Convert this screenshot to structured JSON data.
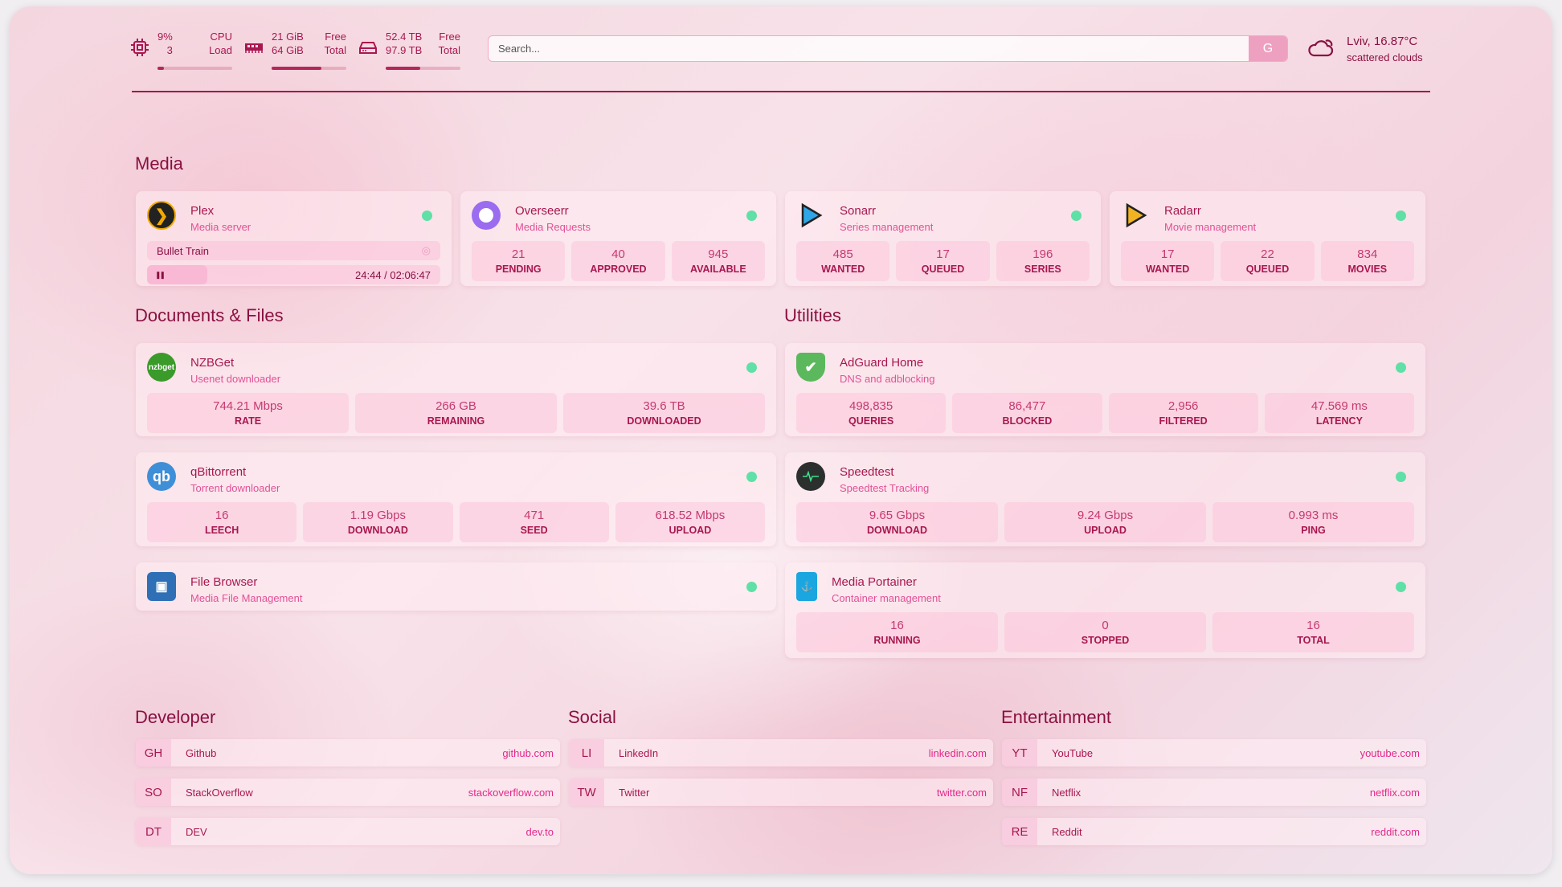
{
  "top": {
    "cpu": {
      "icon": "cpu-icon",
      "v1": "9%",
      "v2": "3",
      "l1": "CPU",
      "l2": "Load",
      "fill": 9
    },
    "mem": {
      "icon": "memory-icon",
      "v1": "21 GiB",
      "v2": "64 GiB",
      "l1": "Free",
      "l2": "Total",
      "fill": 67
    },
    "disk": {
      "icon": "disk-icon",
      "v1": "52.4 TB",
      "v2": "97.9 TB",
      "l1": "Free",
      "l2": "Total",
      "fill": 46
    },
    "search": {
      "placeholder": "Search...",
      "button": "G"
    },
    "weather": {
      "icon": "cloud-sun-icon",
      "title": "Lviv, 16.87°C",
      "desc": "scattered clouds"
    }
  },
  "colors": {
    "accent": "#a8174f",
    "status_ok": "#5fe0a6"
  },
  "media": {
    "heading": "Media",
    "cards": [
      {
        "id": "plex",
        "title": "Plex",
        "subtitle": "Media server",
        "icon_color": "#222",
        "player": {
          "title": "Bullet Train",
          "time": "24:44 / 02:06:47",
          "state": "paused"
        }
      },
      {
        "id": "overseerr",
        "title": "Overseerr",
        "subtitle": "Media Requests",
        "icon_color": "#9b6cf0",
        "stats": [
          {
            "v": "21",
            "l": "PENDING"
          },
          {
            "v": "40",
            "l": "APPROVED"
          },
          {
            "v": "945",
            "l": "AVAILABLE"
          }
        ]
      },
      {
        "id": "sonarr",
        "title": "Sonarr",
        "subtitle": "Series management",
        "icon_color": "#2fa6e8",
        "stats": [
          {
            "v": "485",
            "l": "WANTED"
          },
          {
            "v": "17",
            "l": "QUEUED"
          },
          {
            "v": "196",
            "l": "SERIES"
          }
        ]
      },
      {
        "id": "radarr",
        "title": "Radarr",
        "subtitle": "Movie management",
        "icon_color": "#f2b322",
        "stats": [
          {
            "v": "17",
            "l": "WANTED"
          },
          {
            "v": "22",
            "l": "QUEUED"
          },
          {
            "v": "834",
            "l": "MOVIES"
          }
        ]
      }
    ]
  },
  "docs": {
    "heading": "Documents & Files",
    "cards": [
      {
        "id": "nzbget",
        "title": "NZBGet",
        "subtitle": "Usenet downloader",
        "icon_color": "#3a9a2a",
        "icon_text": "nzbget",
        "stats": [
          {
            "v": "744.21 Mbps",
            "l": "RATE"
          },
          {
            "v": "266 GB",
            "l": "REMAINING"
          },
          {
            "v": "39.6 TB",
            "l": "DOWNLOADED"
          }
        ]
      },
      {
        "id": "qbittorrent",
        "title": "qBittorrent",
        "subtitle": "Torrent downloader",
        "icon_color": "#3f8fd8",
        "icon_text": "qb",
        "stats": [
          {
            "v": "16",
            "l": "LEECH"
          },
          {
            "v": "1.19 Gbps",
            "l": "DOWNLOAD"
          },
          {
            "v": "471",
            "l": "SEED"
          },
          {
            "v": "618.52 Mbps",
            "l": "UPLOAD"
          }
        ]
      },
      {
        "id": "filebrowser",
        "title": "File Browser",
        "subtitle": "Media File Management",
        "icon_color": "#2f6fb6"
      }
    ]
  },
  "utilities": {
    "heading": "Utilities",
    "cards": [
      {
        "id": "adguard",
        "title": "AdGuard Home",
        "subtitle": "DNS and adblocking",
        "icon_color": "#5cb85c",
        "stats": [
          {
            "v": "498,835",
            "l": "QUERIES"
          },
          {
            "v": "86,477",
            "l": "BLOCKED"
          },
          {
            "v": "2,956",
            "l": "FILTERED"
          },
          {
            "v": "47.569 ms",
            "l": "LATENCY"
          }
        ]
      },
      {
        "id": "speedtest",
        "title": "Speedtest",
        "subtitle": "Speedtest Tracking",
        "icon_color": "#2b2f2e",
        "stats": [
          {
            "v": "9.65 Gbps",
            "l": "DOWNLOAD"
          },
          {
            "v": "9.24 Gbps",
            "l": "UPLOAD"
          },
          {
            "v": "0.993 ms",
            "l": "PING"
          }
        ]
      },
      {
        "id": "portainer",
        "title": "Media Portainer",
        "subtitle": "Container management",
        "icon_color": "#1ca6e0",
        "stats": [
          {
            "v": "16",
            "l": "RUNNING"
          },
          {
            "v": "0",
            "l": "STOPPED"
          },
          {
            "v": "16",
            "l": "TOTAL"
          }
        ]
      }
    ]
  },
  "bookmarks": [
    {
      "heading": "Developer",
      "items": [
        {
          "abbr": "GH",
          "name": "Github",
          "url": "github.com"
        },
        {
          "abbr": "SO",
          "name": "StackOverflow",
          "url": "stackoverflow.com"
        },
        {
          "abbr": "DT",
          "name": "DEV",
          "url": "dev.to"
        }
      ]
    },
    {
      "heading": "Social",
      "items": [
        {
          "abbr": "LI",
          "name": "LinkedIn",
          "url": "linkedin.com"
        },
        {
          "abbr": "TW",
          "name": "Twitter",
          "url": "twitter.com"
        }
      ]
    },
    {
      "heading": "Entertainment",
      "items": [
        {
          "abbr": "YT",
          "name": "YouTube",
          "url": "youtube.com"
        },
        {
          "abbr": "NF",
          "name": "Netflix",
          "url": "netflix.com"
        },
        {
          "abbr": "RE",
          "name": "Reddit",
          "url": "reddit.com"
        }
      ]
    }
  ]
}
